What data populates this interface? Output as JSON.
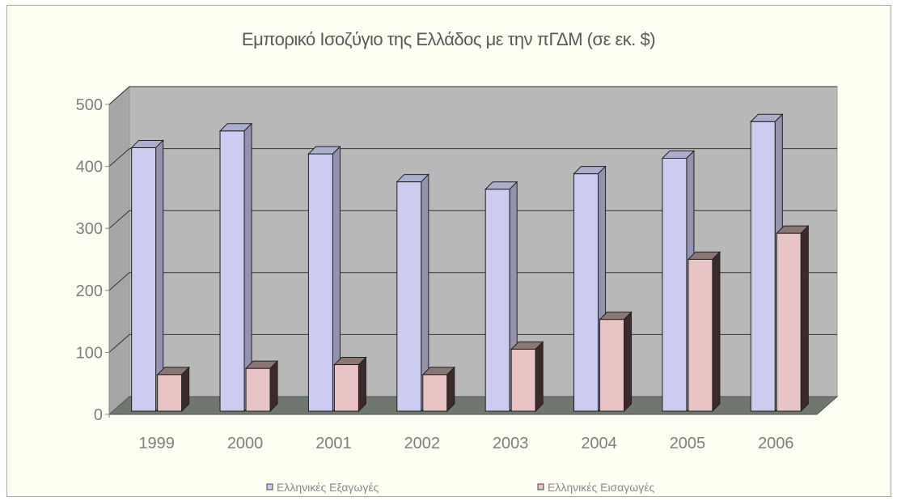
{
  "chart_data": {
    "type": "bar",
    "title": "Εμπορικό Ισοζύγιο της Ελλάδος με την πΓΔΜ (σε εκ. $)",
    "categories": [
      "1999",
      "2000",
      "2001",
      "2002",
      "2003",
      "2004",
      "2005",
      "2006"
    ],
    "series": [
      {
        "name": "Ελληνικές Εξαγωγές",
        "values": [
          425,
          452,
          415,
          370,
          358,
          383,
          408,
          467
        ],
        "color": "#ccccf0"
      },
      {
        "name": "Ελληνικές Εισαγωγές",
        "values": [
          59,
          69,
          75,
          59,
          100,
          148,
          245,
          287
        ],
        "color": "#e8c4c4"
      }
    ],
    "ylim": [
      0,
      500
    ],
    "yticks": [
      "0",
      "100",
      "200",
      "300",
      "400",
      "500"
    ],
    "grid": true,
    "legend_position": "bottom",
    "colors": {
      "wall": "#b8b8b8",
      "floor": "#6f776f",
      "background": "#fffff4",
      "gridline": "#333333"
    }
  }
}
